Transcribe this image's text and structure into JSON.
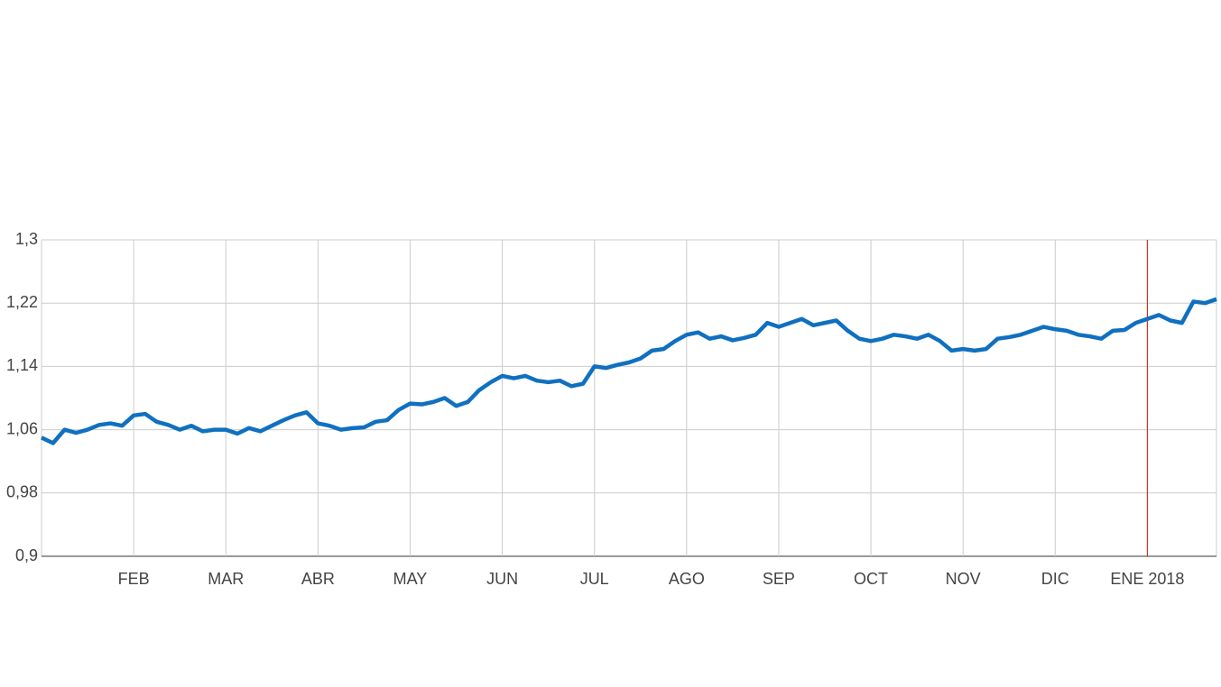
{
  "chart_data": {
    "type": "line",
    "categories": [
      null,
      null,
      null,
      null,
      null,
      null,
      null,
      null,
      "FEB",
      null,
      null,
      null,
      null,
      null,
      null,
      null,
      "MAR",
      null,
      null,
      null,
      null,
      null,
      null,
      null,
      "ABR",
      null,
      null,
      null,
      null,
      null,
      null,
      null,
      "MAY",
      null,
      null,
      null,
      null,
      null,
      null,
      null,
      "JUN",
      null,
      null,
      null,
      null,
      null,
      null,
      null,
      "JUL",
      null,
      null,
      null,
      null,
      null,
      null,
      null,
      "AGO",
      null,
      null,
      null,
      null,
      null,
      null,
      null,
      "SEP",
      null,
      null,
      null,
      null,
      null,
      null,
      null,
      "OCT",
      null,
      null,
      null,
      null,
      null,
      null,
      null,
      "NOV",
      null,
      null,
      null,
      null,
      null,
      null,
      null,
      "DIC",
      null,
      null,
      null,
      null,
      null,
      null,
      null,
      "ENE 2018",
      null,
      null,
      null,
      null,
      null,
      null
    ],
    "values": [
      1.05,
      1.043,
      1.06,
      1.056,
      1.06,
      1.066,
      1.068,
      1.065,
      1.078,
      1.08,
      1.07,
      1.066,
      1.06,
      1.065,
      1.058,
      1.06,
      1.06,
      1.055,
      1.062,
      1.058,
      1.065,
      1.072,
      1.078,
      1.082,
      1.068,
      1.065,
      1.06,
      1.062,
      1.063,
      1.07,
      1.072,
      1.085,
      1.093,
      1.092,
      1.095,
      1.1,
      1.09,
      1.095,
      1.11,
      1.12,
      1.128,
      1.125,
      1.128,
      1.122,
      1.12,
      1.122,
      1.115,
      1.118,
      1.14,
      1.138,
      1.142,
      1.145,
      1.15,
      1.16,
      1.162,
      1.172,
      1.18,
      1.183,
      1.175,
      1.178,
      1.173,
      1.176,
      1.18,
      1.195,
      1.19,
      1.195,
      1.2,
      1.192,
      1.195,
      1.198,
      1.185,
      1.175,
      1.172,
      1.175,
      1.18,
      1.178,
      1.175,
      1.18,
      1.172,
      1.16,
      1.162,
      1.16,
      1.162,
      1.175,
      1.177,
      1.18,
      1.185,
      1.19,
      1.187,
      1.185,
      1.18,
      1.178,
      1.175,
      1.185,
      1.186,
      1.195,
      1.2,
      1.205,
      1.198,
      1.195,
      1.222,
      1.22,
      1.225
    ],
    "color": "#1070c0",
    "ylim": [
      0.9,
      1.3
    ],
    "yticks": [
      {
        "value": 0.9,
        "label": "0,9"
      },
      {
        "value": 0.98,
        "label": "0,98"
      },
      {
        "value": 1.06,
        "label": "1,06"
      },
      {
        "value": 1.14,
        "label": "1,14"
      },
      {
        "value": 1.22,
        "label": "1,22"
      },
      {
        "value": 1.3,
        "label": "1,3"
      }
    ],
    "grid": true
  }
}
